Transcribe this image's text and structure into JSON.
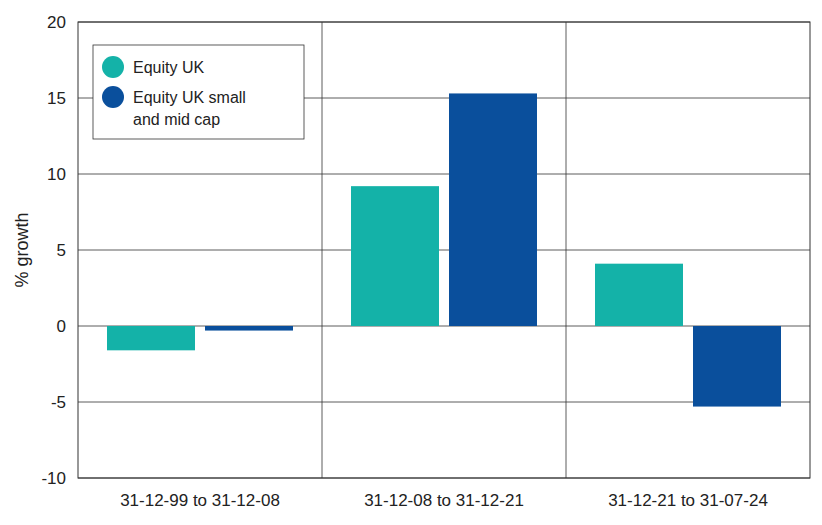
{
  "chart_data": {
    "type": "bar",
    "ylabel": "% growth",
    "categories": [
      "31-12-99 to 31-12-08",
      "31-12-08 to 31-12-21",
      "31-12-21 to 31-07-24"
    ],
    "series": [
      {
        "name": "Equity UK",
        "color": "#14b2a8",
        "values": [
          -1.6,
          9.2,
          4.1
        ]
      },
      {
        "name": "Equity UK small and mid cap",
        "color": "#0a4f9c",
        "values": [
          -0.3,
          15.3,
          -5.3
        ]
      }
    ],
    "ylim": [
      -10,
      20
    ],
    "yticks": [
      -10,
      -5,
      0,
      5,
      10,
      15,
      20
    ],
    "grid": true,
    "legend": "upper left"
  }
}
